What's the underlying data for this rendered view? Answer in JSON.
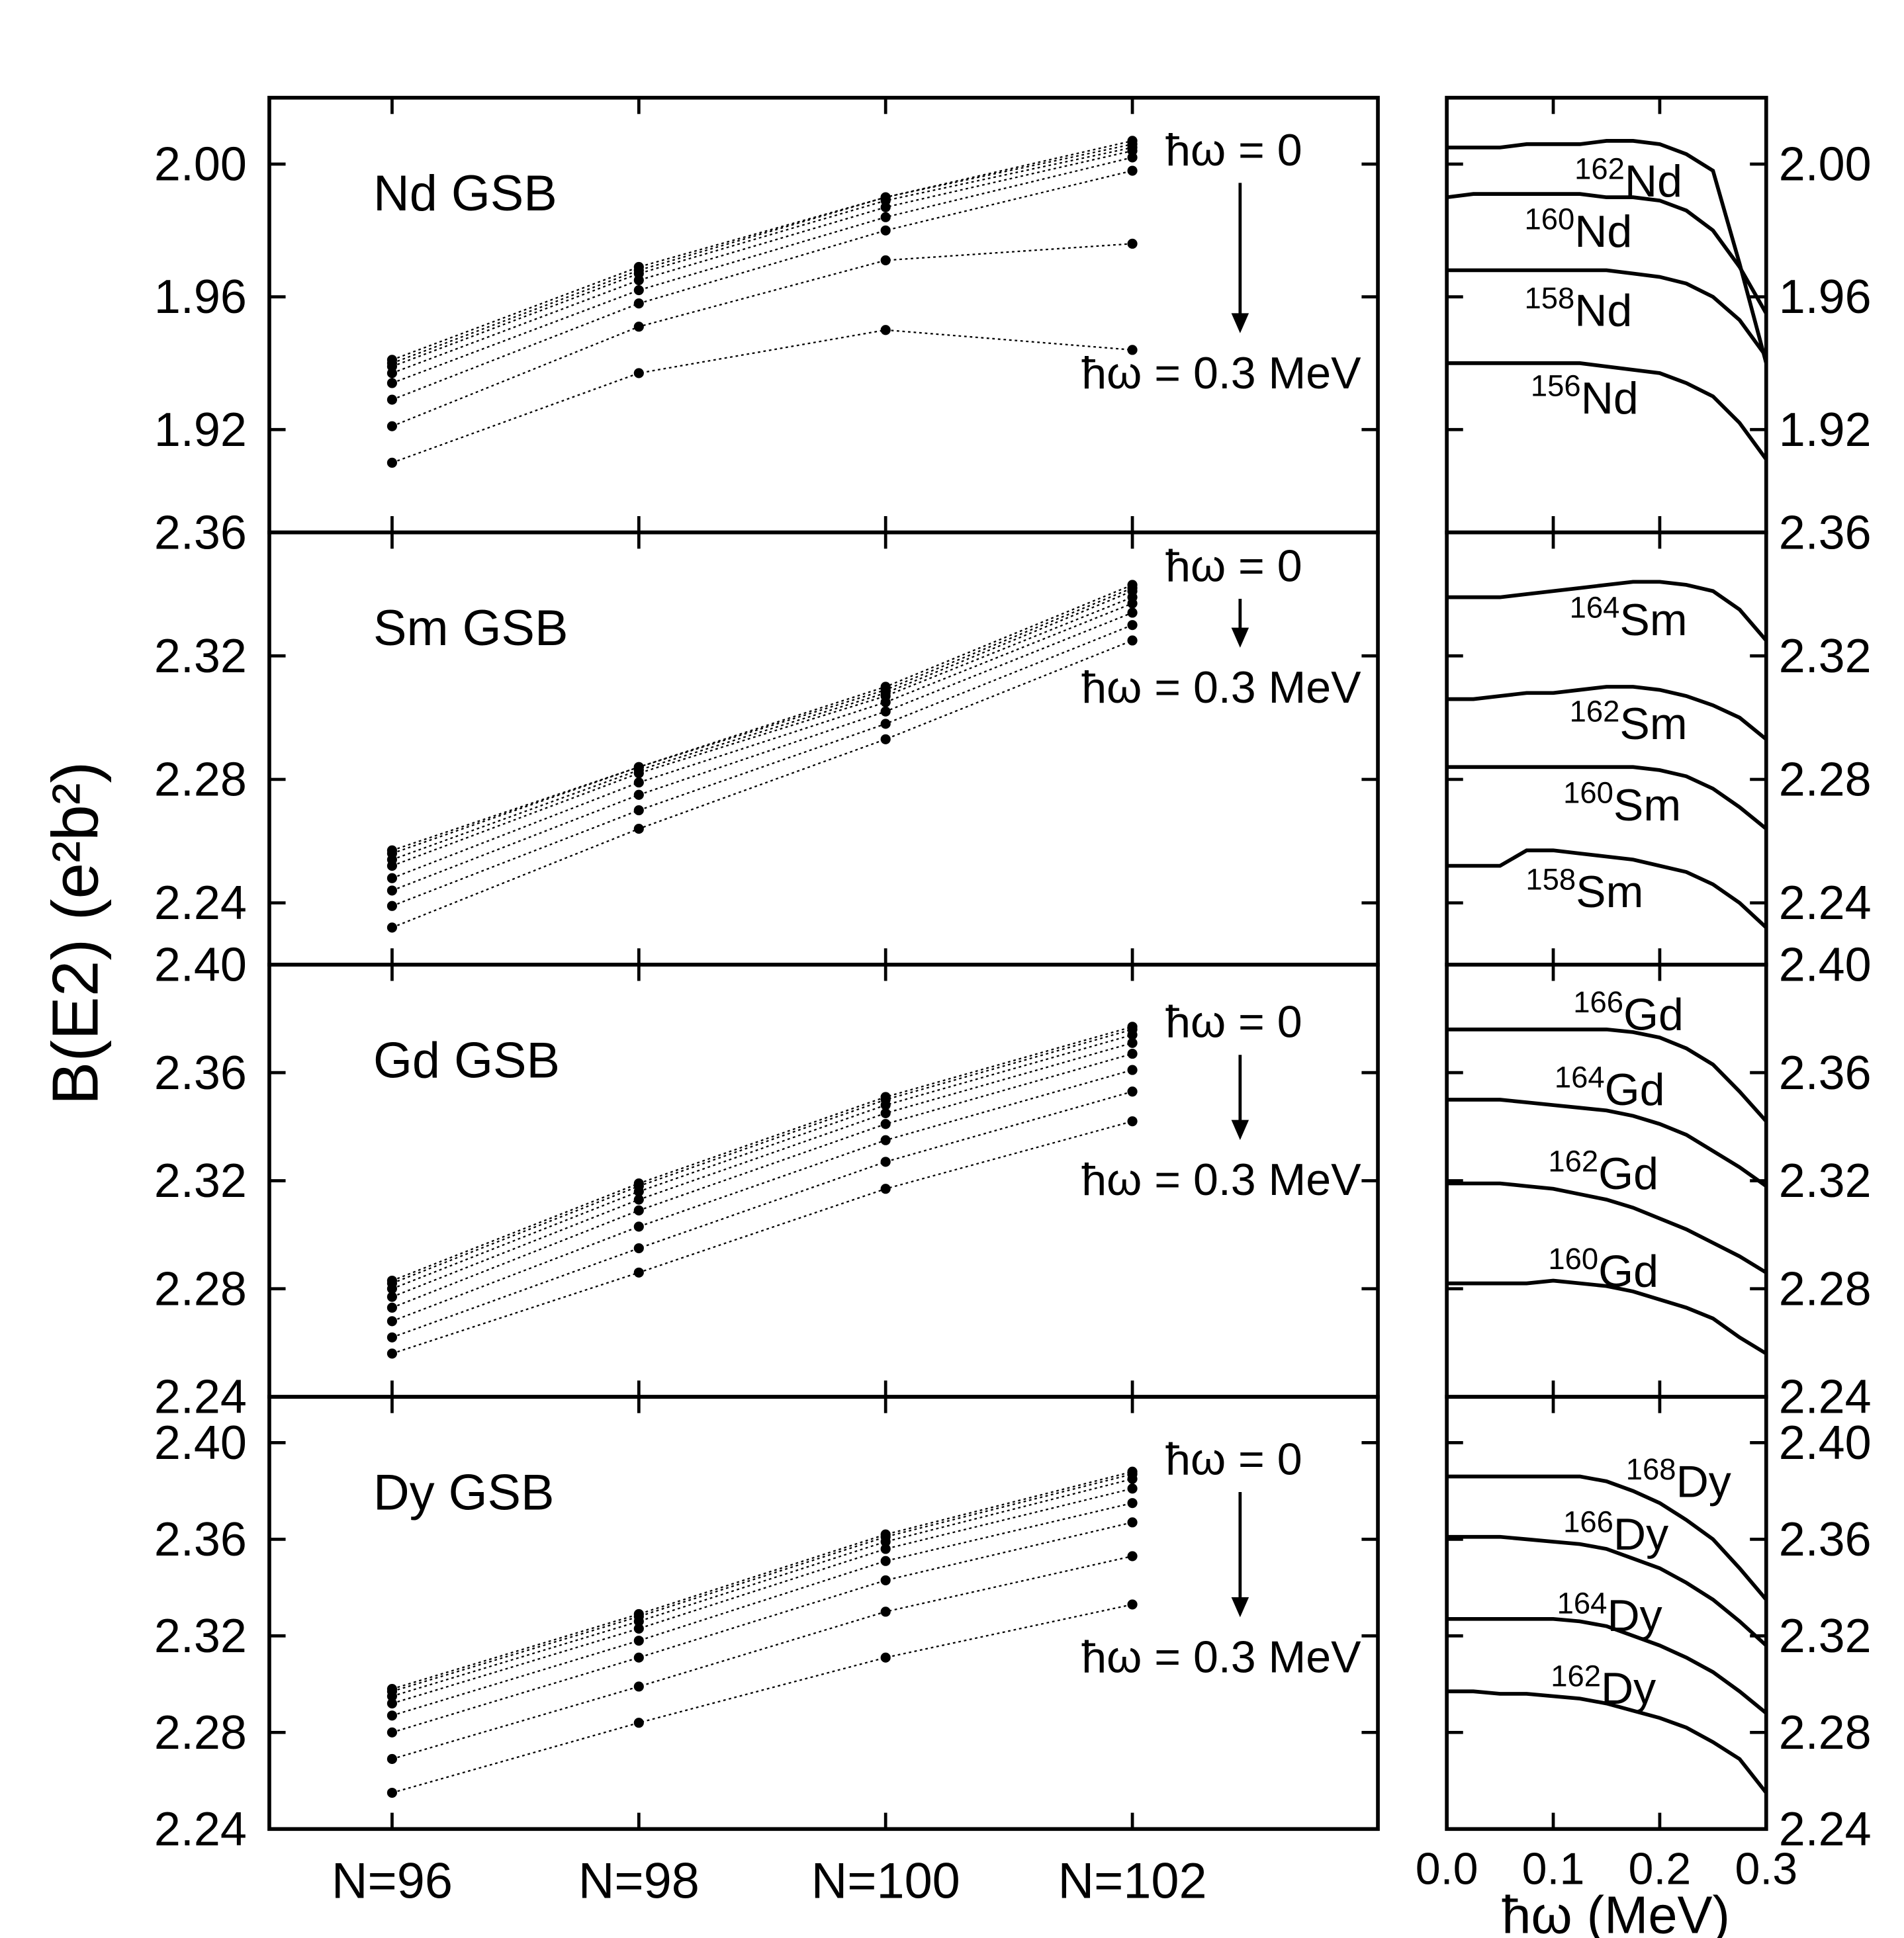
{
  "chart_data": [
    {
      "type": "line",
      "ylabel": "B(E2) (e²b²)",
      "title": "Nd GSB",
      "annotation_top": "ħω = 0",
      "annotation_bottom": "ħω = 0.3 MeV",
      "color": "#000000",
      "ylim": [
        1.889,
        2.02
      ],
      "yticks": [
        1.92,
        1.96,
        {
          "value": 2,
          "label": "2.00"
        }
      ],
      "series": [
        {
          "values": [
            1.941,
            1.969,
            1.99,
            2.007
          ]
        },
        {
          "values": [
            1.94,
            1.968,
            1.99,
            2.006
          ]
        },
        {
          "values": [
            1.939,
            1.967,
            1.989,
            2.005
          ]
        },
        {
          "values": [
            1.937,
            1.965,
            1.987,
            2.004
          ]
        },
        {
          "values": [
            1.934,
            1.962,
            1.984,
            2.002
          ]
        },
        {
          "values": [
            1.929,
            1.958,
            1.98,
            1.998
          ]
        },
        {
          "values": [
            1.921,
            1.951,
            1.971,
            1.976
          ]
        },
        {
          "values": [
            1.91,
            1.937,
            1.95,
            1.944
          ]
        }
      ]
    },
    {
      "type": "line",
      "color": "#000000",
      "xlim": [
        0,
        0.3
      ],
      "x": [
        0,
        0.025,
        0.05,
        0.075,
        0.1,
        0.125,
        0.15,
        0.175,
        0.2,
        0.225,
        0.25,
        0.275,
        0.3
      ],
      "ylim": [
        1.889,
        2.02
      ],
      "yticks": [
        1.92,
        1.96,
        {
          "value": 2,
          "label": "2.00"
        }
      ],
      "series": [
        {
          "mass": "162",
          "symbol": "Nd",
          "values": [
            2.005,
            2.005,
            2.005,
            2.006,
            2.006,
            2.006,
            2.007,
            2.007,
            2.006,
            2.003,
            1.998,
            1.97,
            1.94
          ]
        },
        {
          "mass": "160",
          "symbol": "Nd",
          "values": [
            1.99,
            1.991,
            1.991,
            1.991,
            1.991,
            1.991,
            1.99,
            1.99,
            1.989,
            1.986,
            1.98,
            1.969,
            1.955
          ]
        },
        {
          "mass": "158",
          "symbol": "Nd",
          "values": [
            1.968,
            1.968,
            1.968,
            1.968,
            1.968,
            1.968,
            1.968,
            1.967,
            1.966,
            1.964,
            1.96,
            1.953,
            1.942
          ]
        },
        {
          "mass": "156",
          "symbol": "Nd",
          "values": [
            1.94,
            1.94,
            1.94,
            1.94,
            1.94,
            1.94,
            1.939,
            1.938,
            1.937,
            1.934,
            1.93,
            1.922,
            1.911
          ]
        }
      ]
    },
    {
      "type": "line",
      "title": "Sm GSB",
      "annotation_top": "ħω = 0",
      "annotation_bottom": "ħω = 0.3 MeV",
      "color": "#000000",
      "ylim": [
        2.22,
        2.36
      ],
      "yticks": [
        2.24,
        2.28,
        2.32,
        2.36
      ],
      "series": [
        {
          "values": [
            2.257,
            2.284,
            2.31,
            2.343
          ]
        },
        {
          "values": [
            2.256,
            2.284,
            2.309,
            2.342
          ]
        },
        {
          "values": [
            2.254,
            2.283,
            2.308,
            2.341
          ]
        },
        {
          "values": [
            2.252,
            2.282,
            2.307,
            2.339
          ]
        },
        {
          "values": [
            2.248,
            2.279,
            2.305,
            2.337
          ]
        },
        {
          "values": [
            2.244,
            2.275,
            2.302,
            2.334
          ]
        },
        {
          "values": [
            2.239,
            2.27,
            2.298,
            2.33
          ]
        },
        {
          "values": [
            2.232,
            2.264,
            2.293,
            2.325
          ]
        }
      ]
    },
    {
      "type": "line",
      "color": "#000000",
      "xlim": [
        0,
        0.3
      ],
      "x": [
        0,
        0.025,
        0.05,
        0.075,
        0.1,
        0.125,
        0.15,
        0.175,
        0.2,
        0.225,
        0.25,
        0.275,
        0.3
      ],
      "ylim": [
        2.22,
        2.36
      ],
      "yticks": [
        2.24,
        2.28,
        2.32,
        2.36
      ],
      "series": [
        {
          "mass": "164",
          "symbol": "Sm",
          "values": [
            2.339,
            2.339,
            2.339,
            2.34,
            2.341,
            2.342,
            2.343,
            2.344,
            2.344,
            2.343,
            2.341,
            2.335,
            2.325
          ]
        },
        {
          "mass": "162",
          "symbol": "Sm",
          "values": [
            2.306,
            2.306,
            2.307,
            2.308,
            2.308,
            2.309,
            2.31,
            2.31,
            2.309,
            2.307,
            2.304,
            2.3,
            2.293
          ]
        },
        {
          "mass": "160",
          "symbol": "Sm",
          "values": [
            2.284,
            2.284,
            2.284,
            2.284,
            2.284,
            2.284,
            2.284,
            2.284,
            2.283,
            2.281,
            2.277,
            2.271,
            2.264
          ]
        },
        {
          "mass": "158",
          "symbol": "Sm",
          "values": [
            2.252,
            2.252,
            2.252,
            2.257,
            2.257,
            2.256,
            2.255,
            2.254,
            2.252,
            2.25,
            2.246,
            2.24,
            2.232
          ]
        }
      ]
    },
    {
      "type": "line",
      "title": "Gd GSB",
      "annotation_top": "ħω = 0",
      "annotation_bottom": "ħω = 0.3 MeV",
      "color": "#000000",
      "ylim": [
        2.24,
        2.4
      ],
      "yticks": [
        2.24,
        2.28,
        2.32,
        2.36,
        {
          "value": 2.4,
          "label": "2.40"
        }
      ],
      "series": [
        {
          "values": [
            2.283,
            2.319,
            2.351,
            2.377
          ]
        },
        {
          "values": [
            2.282,
            2.318,
            2.35,
            2.376
          ]
        },
        {
          "values": [
            2.28,
            2.316,
            2.348,
            2.374
          ]
        },
        {
          "values": [
            2.277,
            2.313,
            2.345,
            2.371
          ]
        },
        {
          "values": [
            2.273,
            2.309,
            2.341,
            2.367
          ]
        },
        {
          "values": [
            2.268,
            2.303,
            2.335,
            2.361
          ]
        },
        {
          "values": [
            2.262,
            2.295,
            2.327,
            2.353
          ]
        },
        {
          "values": [
            2.256,
            2.286,
            2.317,
            2.342
          ]
        }
      ]
    },
    {
      "type": "line",
      "color": "#000000",
      "xlim": [
        0,
        0.3
      ],
      "x": [
        0,
        0.025,
        0.05,
        0.075,
        0.1,
        0.125,
        0.15,
        0.175,
        0.2,
        0.225,
        0.25,
        0.275,
        0.3
      ],
      "ylim": [
        2.24,
        2.4
      ],
      "yticks": [
        2.24,
        2.28,
        2.32,
        2.36,
        {
          "value": 2.4,
          "label": "2.40"
        }
      ],
      "series": [
        {
          "mass": "166",
          "symbol": "Gd",
          "values": [
            2.376,
            2.376,
            2.376,
            2.376,
            2.376,
            2.376,
            2.376,
            2.375,
            2.373,
            2.369,
            2.363,
            2.353,
            2.342
          ]
        },
        {
          "mass": "164",
          "symbol": "Gd",
          "values": [
            2.35,
            2.35,
            2.35,
            2.349,
            2.348,
            2.347,
            2.346,
            2.344,
            2.341,
            2.337,
            2.331,
            2.325,
            2.318
          ]
        },
        {
          "mass": "162",
          "symbol": "Gd",
          "values": [
            2.319,
            2.319,
            2.319,
            2.318,
            2.317,
            2.315,
            2.313,
            2.31,
            2.306,
            2.302,
            2.297,
            2.292,
            2.286
          ]
        },
        {
          "mass": "160",
          "symbol": "Gd",
          "values": [
            2.282,
            2.282,
            2.282,
            2.282,
            2.283,
            2.282,
            2.281,
            2.279,
            2.276,
            2.273,
            2.269,
            2.262,
            2.256
          ]
        }
      ]
    },
    {
      "type": "line",
      "title": "Dy GSB",
      "annotation_top": "ħω = 0",
      "annotation_bottom": "ħω = 0.3 MeV",
      "color": "#000000",
      "categories": [
        "N=96",
        "N=98",
        "N=100",
        "N=102"
      ],
      "ylim": [
        2.24,
        2.419
      ],
      "yticks": [
        2.24,
        2.28,
        2.32,
        2.36,
        {
          "value": 2.4,
          "label": "2.40"
        }
      ],
      "series": [
        {
          "values": [
            2.298,
            2.329,
            2.362,
            2.388
          ]
        },
        {
          "values": [
            2.297,
            2.328,
            2.361,
            2.387
          ]
        },
        {
          "values": [
            2.295,
            2.326,
            2.359,
            2.385
          ]
        },
        {
          "values": [
            2.292,
            2.323,
            2.356,
            2.381
          ]
        },
        {
          "values": [
            2.287,
            2.318,
            2.351,
            2.375
          ]
        },
        {
          "values": [
            2.28,
            2.311,
            2.343,
            2.367
          ]
        },
        {
          "values": [
            2.269,
            2.299,
            2.33,
            2.353
          ]
        },
        {
          "values": [
            2.255,
            2.284,
            2.311,
            2.333
          ]
        }
      ]
    },
    {
      "type": "line",
      "color": "#000000",
      "xlabel": "ħω (MeV)",
      "xlim": [
        0,
        0.3
      ],
      "xticks": [
        {
          "value": 0,
          "label": "0.0"
        },
        0.1,
        0.2,
        0.3
      ],
      "x": [
        0,
        0.025,
        0.05,
        0.075,
        0.1,
        0.125,
        0.15,
        0.175,
        0.2,
        0.225,
        0.25,
        0.275,
        0.3
      ],
      "ylim": [
        2.24,
        2.419
      ],
      "yticks": [
        2.24,
        2.28,
        2.32,
        2.36,
        {
          "value": 2.4,
          "label": "2.40"
        }
      ],
      "series": [
        {
          "mass": "168",
          "symbol": "Dy",
          "values": [
            2.386,
            2.386,
            2.386,
            2.386,
            2.386,
            2.386,
            2.384,
            2.38,
            2.375,
            2.368,
            2.36,
            2.348,
            2.335
          ]
        },
        {
          "mass": "166",
          "symbol": "Dy",
          "values": [
            2.361,
            2.361,
            2.361,
            2.36,
            2.359,
            2.358,
            2.356,
            2.352,
            2.348,
            2.342,
            2.335,
            2.326,
            2.316
          ]
        },
        {
          "mass": "164",
          "symbol": "Dy",
          "values": [
            2.327,
            2.327,
            2.327,
            2.327,
            2.327,
            2.326,
            2.324,
            2.32,
            2.316,
            2.311,
            2.305,
            2.297,
            2.288
          ]
        },
        {
          "mass": "162",
          "symbol": "Dy",
          "values": [
            2.297,
            2.297,
            2.296,
            2.296,
            2.295,
            2.294,
            2.292,
            2.289,
            2.286,
            2.282,
            2.276,
            2.269,
            2.255
          ]
        }
      ]
    }
  ]
}
